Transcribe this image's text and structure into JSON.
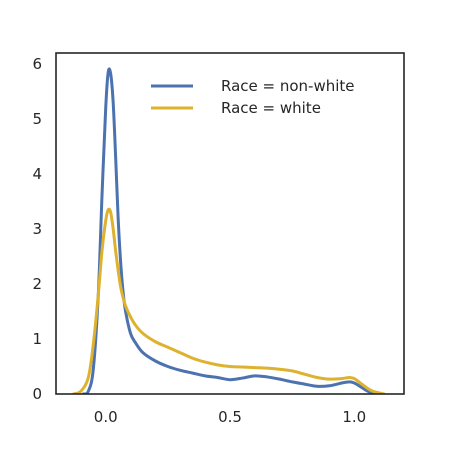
{
  "chart_data": {
    "type": "line",
    "title": "",
    "xlabel": "",
    "ylabel": "",
    "xlim": [
      -0.2,
      1.2
    ],
    "ylim": [
      0,
      6.2
    ],
    "xticks": [
      0.0,
      0.5,
      1.0
    ],
    "xtick_labels": [
      "0.0",
      "0.5",
      "1.0"
    ],
    "yticks": [
      0,
      1,
      2,
      3,
      4,
      5,
      6
    ],
    "ytick_labels": [
      "0",
      "1",
      "2",
      "3",
      "4",
      "5",
      "6"
    ],
    "grid": false,
    "legend_position": "top-right",
    "series": [
      {
        "name": "Race = non-white",
        "color": "#4c72b0",
        "x": [
          -0.09,
          -0.07,
          -0.05,
          -0.03,
          -0.015,
          0.0,
          0.01,
          0.02,
          0.03,
          0.04,
          0.05,
          0.06,
          0.07,
          0.08,
          0.1,
          0.12,
          0.15,
          0.2,
          0.25,
          0.3,
          0.35,
          0.4,
          0.45,
          0.5,
          0.55,
          0.6,
          0.65,
          0.7,
          0.75,
          0.8,
          0.85,
          0.9,
          0.95,
          0.98,
          1.0,
          1.03,
          1.06,
          1.1
        ],
        "y": [
          0.0,
          0.05,
          0.45,
          1.8,
          3.6,
          5.2,
          5.85,
          5.82,
          5.3,
          4.3,
          3.2,
          2.4,
          1.85,
          1.5,
          1.1,
          0.93,
          0.75,
          0.6,
          0.5,
          0.43,
          0.38,
          0.33,
          0.3,
          0.26,
          0.29,
          0.33,
          0.31,
          0.27,
          0.22,
          0.18,
          0.14,
          0.15,
          0.2,
          0.22,
          0.2,
          0.12,
          0.04,
          0.0
        ]
      },
      {
        "name": "Race = white",
        "color": "#ddb22e",
        "x": [
          -0.13,
          -0.1,
          -0.07,
          -0.05,
          -0.03,
          -0.015,
          0.0,
          0.01,
          0.02,
          0.03,
          0.04,
          0.05,
          0.06,
          0.07,
          0.08,
          0.1,
          0.12,
          0.15,
          0.2,
          0.25,
          0.3,
          0.35,
          0.4,
          0.45,
          0.5,
          0.55,
          0.6,
          0.65,
          0.7,
          0.75,
          0.8,
          0.85,
          0.9,
          0.95,
          0.98,
          1.0,
          1.03,
          1.07,
          1.12
        ],
        "y": [
          0.0,
          0.05,
          0.3,
          0.9,
          1.8,
          2.6,
          3.15,
          3.35,
          3.3,
          3.0,
          2.6,
          2.25,
          1.95,
          1.75,
          1.6,
          1.4,
          1.25,
          1.1,
          0.95,
          0.85,
          0.75,
          0.65,
          0.58,
          0.53,
          0.5,
          0.49,
          0.48,
          0.47,
          0.45,
          0.42,
          0.36,
          0.3,
          0.27,
          0.28,
          0.3,
          0.28,
          0.18,
          0.06,
          0.0
        ]
      }
    ]
  }
}
